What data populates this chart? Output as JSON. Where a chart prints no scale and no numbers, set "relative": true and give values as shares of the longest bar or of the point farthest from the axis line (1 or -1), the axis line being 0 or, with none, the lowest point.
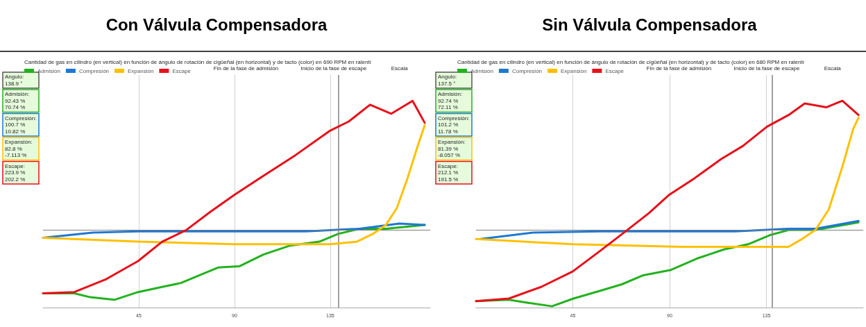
{
  "chart_data": [
    {
      "type": "line",
      "title": "Con Válvula Compensadora",
      "subtitle": "Cantidad de gas en cilindro (en vertical) en función de ángulo de rotación de cigüeñal (en horizontal) y de tacto (color) en 690 RPM en ralentí",
      "relative": true,
      "xlim": [
        0,
        182
      ],
      "xticks": [
        45,
        90,
        135
      ],
      "grid": "x",
      "legend": "top left",
      "marker": "none",
      "line_style": "solid",
      "annotations": [
        "Angulo:\n138.9 °",
        "Admisión:\n92.43 %\n70.74 %",
        "Compresión:\n100.7 %\n10.82 %",
        "Expansión:\n82.8 %\n-7.113 %",
        "Escape:\n223.9 %\n202.2 %",
        "Fin de la fase de admisión",
        "Inicio de la fase de escape",
        "Escala"
      ],
      "ref_lines": [
        {
          "axis": "x",
          "value": 138.9,
          "color": "#808080"
        }
      ],
      "series": [
        {
          "name": "Admisión",
          "color": "#22b21e",
          "x": [
            0,
            14.7,
            22.2,
            33.5,
            44.7,
            56,
            64.8,
            73.6,
            82.3,
            92.4,
            103.6,
            116.2,
            129.9,
            138.7,
            148.7,
            161.2,
            179.4
          ],
          "values": [
            -0.49,
            -0.49,
            -0.52,
            -0.54,
            -0.48,
            -0.44,
            -0.41,
            -0.35,
            -0.29,
            -0.28,
            -0.19,
            -0.12,
            -0.09,
            -0.03,
            0.01,
            0.01,
            0.04
          ]
        },
        {
          "name": "Compresión",
          "color": "#1e78d2",
          "x": [
            0,
            23.4,
            44.7,
            86.1,
            123.7,
            148.7,
            167.5,
            179.4
          ],
          "values": [
            -0.06,
            -0.02,
            -0.01,
            -0.01,
            -0.01,
            0.01,
            0.05,
            0.04
          ]
        },
        {
          "name": "Expansión",
          "color": "#ffc000",
          "x": [
            0,
            44.7,
            89.8,
            135,
            147.5,
            155,
            161.2,
            166.3,
            171.3,
            176.3,
            179.4
          ],
          "values": [
            -0.06,
            -0.09,
            -0.11,
            -0.11,
            -0.09,
            -0.03,
            0.04,
            0.17,
            0.4,
            0.66,
            0.81
          ]
        },
        {
          "name": "Escape",
          "color": "#e8101a",
          "x": [
            0,
            14.7,
            29.7,
            44.7,
            56,
            67.3,
            78.6,
            89.8,
            103.6,
            118.7,
            135,
            143.7,
            153.7,
            163.7,
            173.7,
            179.4
          ],
          "values": [
            -0.49,
            -0.48,
            -0.38,
            -0.24,
            -0.09,
            0,
            0.14,
            0.27,
            0.42,
            0.58,
            0.77,
            0.84,
            0.97,
            0.9,
            1,
            0.83
          ]
        }
      ]
    },
    {
      "type": "line",
      "title": "Sin Válvula Compensadora",
      "subtitle": "Cantidad de gas en cilindro (en vertical) en función de ángulo de rotación de cigüeñal (en horizontal) y de tacto (color) en 680 RPM en ralentí",
      "relative": true,
      "xlim": [
        0,
        180
      ],
      "xticks": [
        45,
        90,
        135
      ],
      "grid": "x",
      "legend": "top left",
      "marker": "none",
      "line_style": "solid",
      "annotations": [
        "Angulo:\n137.5 °",
        "Admisión:\n92.74 %\n72.11 %",
        "Compresión:\n101.2 %\n11.78 %",
        "Expansión:\n81.39 %\n-8.057 %",
        "Escape:\n212.1 %\n191.5 %",
        "Fin de la fase de admisión",
        "Inicio de la fase de escape",
        "Escala"
      ],
      "ref_lines": [
        {
          "axis": "x",
          "value": 137.5,
          "color": "#808080"
        }
      ],
      "series": [
        {
          "name": "Admisión",
          "color": "#22b21e",
          "x": [
            0,
            15.3,
            22.8,
            35.3,
            45.3,
            57.8,
            67.8,
            77.8,
            90.3,
            102.8,
            115.3,
            126.5,
            136.5,
            145.3,
            157.8,
            177.8
          ],
          "values": [
            -0.55,
            -0.54,
            -0.56,
            -0.59,
            -0.53,
            -0.47,
            -0.42,
            -0.35,
            -0.31,
            -0.22,
            -0.15,
            -0.11,
            -0.04,
            0,
            0,
            0.06
          ]
        },
        {
          "name": "Compresión",
          "color": "#1e78d2",
          "x": [
            2.1,
            26.5,
            57.8,
            120.3,
            145.3,
            157.8,
            177.8
          ],
          "values": [
            -0.07,
            -0.02,
            -0.01,
            -0.01,
            0.01,
            0.01,
            0.07
          ]
        },
        {
          "name": "Expansión",
          "color": "#ffc000",
          "x": [
            0,
            45.3,
            95.3,
            145.3,
            151.5,
            157.8,
            164,
            170.3,
            175.3,
            177.8
          ],
          "values": [
            -0.07,
            -0.11,
            -0.13,
            -0.13,
            -0.07,
            0,
            0.16,
            0.49,
            0.78,
            0.87
          ]
        },
        {
          "name": "Escape",
          "color": "#e8101a",
          "x": [
            0,
            15.3,
            30.3,
            45,
            57.8,
            70.3,
            80.3,
            89.6,
            101.5,
            114,
            124,
            135.3,
            145.3,
            152.8,
            162.8,
            170.3,
            177.8
          ],
          "values": [
            -0.55,
            -0.53,
            -0.44,
            -0.32,
            -0.16,
            0,
            0.13,
            0.27,
            0.4,
            0.55,
            0.65,
            0.8,
            0.89,
            0.98,
            0.95,
            1,
            0.89
          ]
        }
      ]
    }
  ]
}
